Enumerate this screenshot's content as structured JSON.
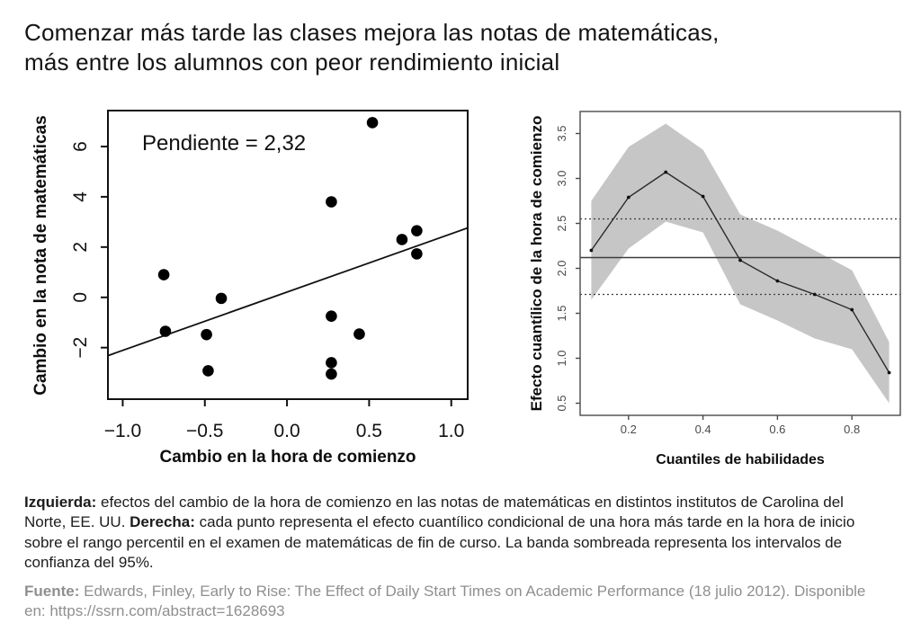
{
  "title": {
    "line1": "Comenzar más tarde las clases mejora las notas de matemáticas,",
    "line2": "más entre los alumnos con peor rendimiento inicial"
  },
  "caption": {
    "segments": [
      {
        "bold": true,
        "text": "Izquierda:"
      },
      {
        "bold": false,
        "text": " efectos del cambio de la hora de comienzo en las notas de matemáticas en distintos institutos de Carolina del Norte, EE. UU. "
      },
      {
        "bold": true,
        "text": "Derecha:"
      },
      {
        "bold": false,
        "text": " cada punto representa el efecto cuantílico condicional de una hora más tarde en la hora de inicio sobre el rango percentil en el examen de matemáticas de fin de curso. La banda sombreada representa los intervalos de confianza del 95%."
      }
    ]
  },
  "source": {
    "segments": [
      {
        "bold": true,
        "text": "Fuente:"
      },
      {
        "bold": false,
        "text": " Edwards, Finley, Early to Rise: The Effect of Daily Start Times on Academic Performance (18 julio 2012). Disponible en: https://ssrn.com/abstract=1628693"
      }
    ]
  },
  "colors": {
    "band_gray": "#c6c6c6",
    "axis_black": "#111111",
    "right_axis_gray": "#4a4a4a",
    "reference_line": "#3c3c3c",
    "source_text": "#8f8f8f"
  },
  "chart_data": [
    {
      "type": "scatter",
      "annotation": "Pendiente = 2,32",
      "xlabel": "Cambio en la hora de comienzo",
      "ylabel": "Cambio en la nota de matemáticas",
      "xlim": [
        -1.09,
        1.1
      ],
      "ylim": [
        -4.05,
        7.43
      ],
      "xticks": [
        -1.0,
        -0.5,
        0.0,
        0.5,
        1.0
      ],
      "xtick_labels": [
        "−1.0",
        "−0.5",
        "0.0",
        "0.5",
        "1.0"
      ],
      "yticks": [
        -2,
        0,
        2,
        4,
        6
      ],
      "ytick_labels": [
        "−2",
        "0",
        "2",
        "4",
        "6"
      ],
      "points": [
        [
          -0.75,
          0.9
        ],
        [
          -0.74,
          -1.35
        ],
        [
          -0.49,
          -1.48
        ],
        [
          -0.48,
          -2.92
        ],
        [
          -0.4,
          -0.04
        ],
        [
          0.27,
          3.8
        ],
        [
          0.27,
          -0.75
        ],
        [
          0.27,
          -2.6
        ],
        [
          0.27,
          -3.05
        ],
        [
          0.44,
          -1.46
        ],
        [
          0.52,
          6.95
        ],
        [
          0.7,
          2.3
        ],
        [
          0.79,
          2.65
        ],
        [
          0.79,
          1.73
        ]
      ],
      "regression": {
        "slope": 2.32,
        "intercept": 0.21
      }
    },
    {
      "type": "line",
      "xlabel": "Cuantiles de habilidades",
      "ylabel": "Efecto cuantílico de la hora de comienzo",
      "xlim": [
        0.07,
        0.93
      ],
      "ylim": [
        0.365,
        3.745
      ],
      "xticks": [
        0.2,
        0.4,
        0.6,
        0.8
      ],
      "xtick_labels": [
        "0.2",
        "0.4",
        "0.6",
        "0.8"
      ],
      "yticks": [
        0.5,
        1.0,
        1.5,
        2.0,
        2.5,
        3.0,
        3.5
      ],
      "ytick_labels": [
        "0.5",
        "1.0",
        "1.5",
        "2.0",
        "2.5",
        "3.0",
        "3.5"
      ],
      "x": [
        0.1,
        0.2,
        0.3,
        0.4,
        0.5,
        0.6,
        0.7,
        0.8,
        0.9
      ],
      "effect": [
        2.2,
        2.79,
        3.07,
        2.8,
        2.09,
        1.86,
        1.71,
        1.54,
        0.84
      ],
      "band_upper": [
        2.75,
        3.35,
        3.61,
        3.32,
        2.6,
        2.42,
        2.2,
        1.98,
        1.18
      ],
      "band_lower": [
        1.65,
        2.22,
        2.52,
        2.4,
        1.6,
        1.42,
        1.22,
        1.1,
        0.5
      ],
      "hline_solid": 2.12,
      "hlines_dashed": [
        2.55,
        1.71
      ],
      "ci_label": "95%"
    }
  ]
}
